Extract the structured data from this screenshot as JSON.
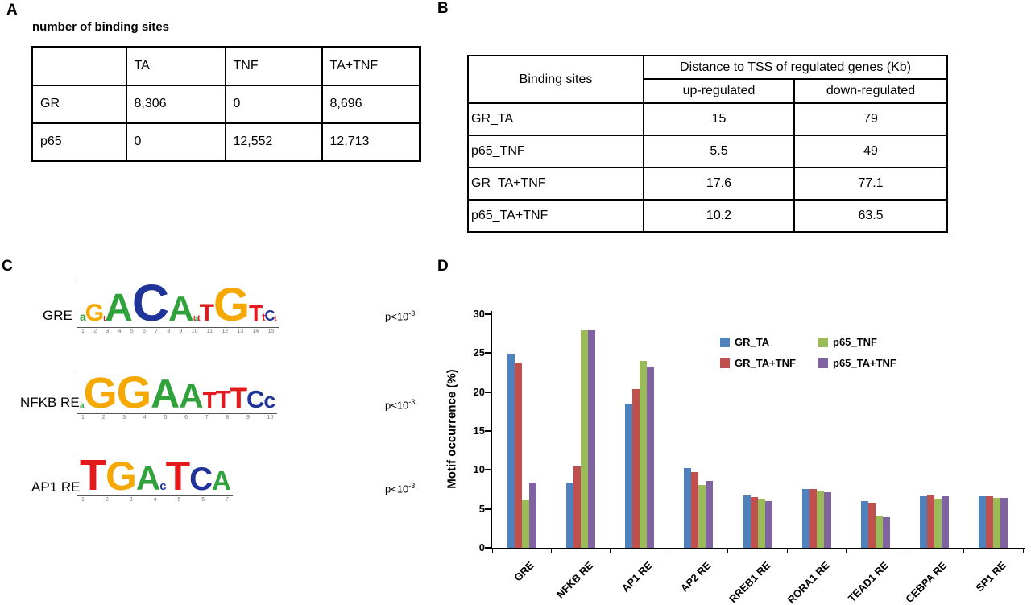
{
  "panels": {
    "a": {
      "label": "A",
      "title": "number of binding sites",
      "table": {
        "headers": [
          "",
          "TA",
          "TNF",
          "TA+TNF"
        ],
        "rows": [
          {
            "name": "GR",
            "values": [
              "8,306",
              "0",
              "8,696"
            ]
          },
          {
            "name": "p65",
            "values": [
              "0",
              "12,552",
              "12,713"
            ]
          }
        ]
      }
    },
    "b": {
      "label": "B",
      "table": {
        "corner_header": "Binding sites",
        "span_header": "Distance to TSS of regulated genes (Kb)",
        "sub_headers": [
          "up-regulated",
          "down-regulated"
        ],
        "rows": [
          {
            "name": "GR_TA",
            "up": "15",
            "down": "79"
          },
          {
            "name": "p65_TNF",
            "up": "5.5",
            "down": "49"
          },
          {
            "name": "GR_TA+TNF",
            "up": "17.6",
            "down": "77.1"
          },
          {
            "name": "p65_TA+TNF",
            "up": "10.2",
            "down": "63.5"
          }
        ]
      }
    },
    "c": {
      "label": "C",
      "motif_colors": {
        "A": "#2fa23c",
        "C": "#1f3399",
        "G": "#f5a800",
        "T": "#e3191c"
      },
      "motifs": [
        {
          "name": "GRE",
          "p_base": "p<10",
          "p_exp": "-3",
          "letters": [
            {
              "ch": "a",
              "k": "A",
              "s": 14
            },
            {
              "ch": "G",
              "k": "G",
              "s": 30
            },
            {
              "ch": "t",
              "k": "T",
              "s": 9
            },
            {
              "ch": "A",
              "k": "A",
              "s": 48
            },
            {
              "ch": "C",
              "k": "C",
              "s": 64
            },
            {
              "ch": "A",
              "k": "A",
              "s": 44
            },
            {
              "ch": "t",
              "k": "T",
              "s": 9
            },
            {
              "ch": "a",
              "k": "A",
              "s": 8
            },
            {
              "ch": "t",
              "k": "T",
              "s": 10
            },
            {
              "ch": "T",
              "k": "T",
              "s": 30
            },
            {
              "ch": "G",
              "k": "G",
              "s": 58
            },
            {
              "ch": "T",
              "k": "T",
              "s": 28
            },
            {
              "ch": "t",
              "k": "T",
              "s": 13
            },
            {
              "ch": "C",
              "k": "C",
              "s": 18
            },
            {
              "ch": "t",
              "k": "T",
              "s": 9
            }
          ]
        },
        {
          "name": "NFKB RE",
          "p_base": "p<10",
          "p_exp": "-3",
          "letters": [
            {
              "ch": "a",
              "k": "A",
              "s": 10
            },
            {
              "ch": "G",
              "k": "G",
              "s": 54
            },
            {
              "ch": "G",
              "k": "G",
              "s": 56
            },
            {
              "ch": "A",
              "k": "A",
              "s": 50
            },
            {
              "ch": "A",
              "k": "A",
              "s": 42
            },
            {
              "ch": "T",
              "k": "T",
              "s": 28
            },
            {
              "ch": "T",
              "k": "T",
              "s": 31
            },
            {
              "ch": "T",
              "k": "T",
              "s": 35
            },
            {
              "ch": "C",
              "k": "C",
              "s": 31
            },
            {
              "ch": "c",
              "k": "C",
              "s": 27
            }
          ]
        },
        {
          "name": "AP1 RE",
          "p_base": "p<10",
          "p_exp": "-3",
          "letters": [
            {
              "ch": "T",
              "k": "T",
              "s": 54
            },
            {
              "ch": "G",
              "k": "G",
              "s": 50
            },
            {
              "ch": "A",
              "k": "A",
              "s": 42
            },
            {
              "ch": "c",
              "k": "C",
              "s": 15
            },
            {
              "ch": "T",
              "k": "T",
              "s": 50
            },
            {
              "ch": "C",
              "k": "C",
              "s": 40
            },
            {
              "ch": "A",
              "k": "A",
              "s": 33
            }
          ]
        }
      ]
    },
    "d": {
      "label": "D"
    }
  },
  "chart_data": {
    "type": "bar",
    "title": "",
    "xlabel": "",
    "ylabel": "Motif occurrence (%)",
    "ylim": [
      0,
      30
    ],
    "ytick_step": 5,
    "grid": false,
    "legend_position": "upper-right",
    "categories": [
      "GRE",
      "NFKB RE",
      "AP1 RE",
      "AP2 RE",
      "RREB1 RE",
      "RORA1 RE",
      "TEAD1 RE",
      "CEBPA RE",
      "SP1 RE"
    ],
    "series": [
      {
        "name": "GR_TA",
        "color": "#4f81bd",
        "values": [
          24.9,
          8.3,
          18.5,
          10.2,
          6.7,
          7.6,
          6.0,
          6.6,
          6.6
        ]
      },
      {
        "name": "GR_TA+TNF",
        "color": "#c0504d",
        "values": [
          23.8,
          10.5,
          20.4,
          9.7,
          6.5,
          7.6,
          5.8,
          6.8,
          6.6
        ]
      },
      {
        "name": "p65_TNF",
        "color": "#9bbb59",
        "values": [
          6.1,
          27.9,
          24.0,
          8.1,
          6.2,
          7.2,
          4.0,
          6.3,
          6.4
        ]
      },
      {
        "name": "p65_TA+TNF",
        "color": "#8064a2",
        "values": [
          8.4,
          27.9,
          23.3,
          8.6,
          6.0,
          7.1,
          3.9,
          6.6,
          6.4
        ]
      }
    ],
    "legend_order": [
      "GR_TA",
      "p65_TNF",
      "GR_TA+TNF",
      "p65_TA+TNF"
    ]
  }
}
